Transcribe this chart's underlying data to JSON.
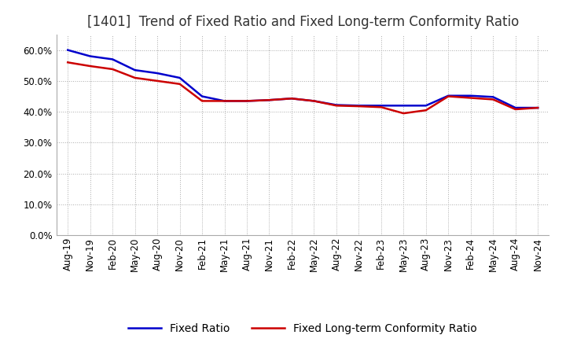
{
  "title": "[1401]  Trend of Fixed Ratio and Fixed Long-term Conformity Ratio",
  "ylim": [
    0.0,
    0.65
  ],
  "yticks": [
    0.0,
    0.1,
    0.2,
    0.3,
    0.4,
    0.5,
    0.6
  ],
  "x_labels": [
    "Aug-19",
    "Nov-19",
    "Feb-20",
    "May-20",
    "Aug-20",
    "Nov-20",
    "Feb-21",
    "May-21",
    "Aug-21",
    "Nov-21",
    "Feb-22",
    "May-22",
    "Aug-22",
    "Nov-22",
    "Feb-23",
    "May-23",
    "Aug-23",
    "Nov-23",
    "Feb-24",
    "May-24",
    "Aug-24",
    "Nov-24"
  ],
  "fixed_ratio": [
    0.6,
    0.58,
    0.57,
    0.535,
    0.525,
    0.51,
    0.45,
    0.435,
    0.435,
    0.438,
    0.443,
    0.435,
    0.422,
    0.42,
    0.42,
    0.42,
    0.42,
    0.452,
    0.452,
    0.448,
    0.413,
    0.413
  ],
  "fixed_lt_ratio": [
    0.56,
    0.548,
    0.538,
    0.51,
    0.5,
    0.49,
    0.435,
    0.435,
    0.435,
    0.438,
    0.443,
    0.435,
    0.42,
    0.418,
    0.415,
    0.395,
    0.405,
    0.45,
    0.445,
    0.44,
    0.408,
    0.413
  ],
  "fixed_ratio_color": "#0000cc",
  "fixed_lt_ratio_color": "#cc0000",
  "line_width": 1.8,
  "background_color": "#ffffff",
  "plot_bg_color": "#ffffff",
  "grid_color": "#aaaaaa",
  "title_fontsize": 12,
  "tick_fontsize": 8.5,
  "legend_fontsize": 10
}
